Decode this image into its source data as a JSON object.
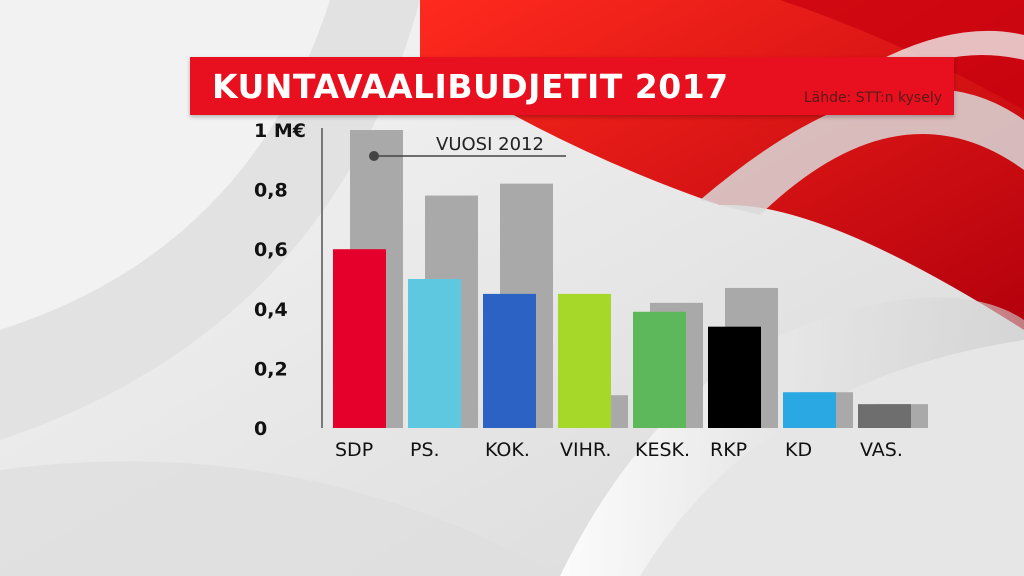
{
  "title": "KUNTAVAALIBUDJETIT 2017",
  "source": "Lähde: STT:n kysely",
  "legend_label": "VUOSI 2012",
  "colors": {
    "title_bar": "#e8101e",
    "previous_bar": "#a9a9a9"
  },
  "chart_data": {
    "type": "bar",
    "title": "KUNTAVAALIBUDJETIT 2017",
    "xlabel": "",
    "ylabel": "",
    "categories": [
      "SDP",
      "PS.",
      "KOK.",
      "VIHR.",
      "KESK.",
      "RKP",
      "KD",
      "VAS."
    ],
    "ylim": [
      0,
      1
    ],
    "yticks": [
      {
        "value": 0,
        "label": "0"
      },
      {
        "value": 0.2,
        "label": "0,2"
      },
      {
        "value": 0.4,
        "label": "0,4"
      },
      {
        "value": 0.6,
        "label": "0,6"
      },
      {
        "value": 0.8,
        "label": "0,8"
      },
      {
        "value": 1,
        "label": "1 M€"
      }
    ],
    "grid": false,
    "series": [
      {
        "values": [
          0.6,
          0.5,
          0.45,
          0.45,
          0.39,
          0.34,
          0.12,
          0.08
        ],
        "colors": [
          "#e4002b",
          "#5ec8e0",
          "#2b62c4",
          "#a6d82a",
          "#5cb85a",
          "#000000",
          "#2aa8e4",
          "#6e6e6e"
        ]
      },
      {
        "name": "VUOSI 2012",
        "values": [
          1.0,
          0.78,
          0.82,
          0.11,
          0.42,
          0.47,
          0.12,
          0.08
        ],
        "color": "#a9a9a9"
      }
    ]
  }
}
